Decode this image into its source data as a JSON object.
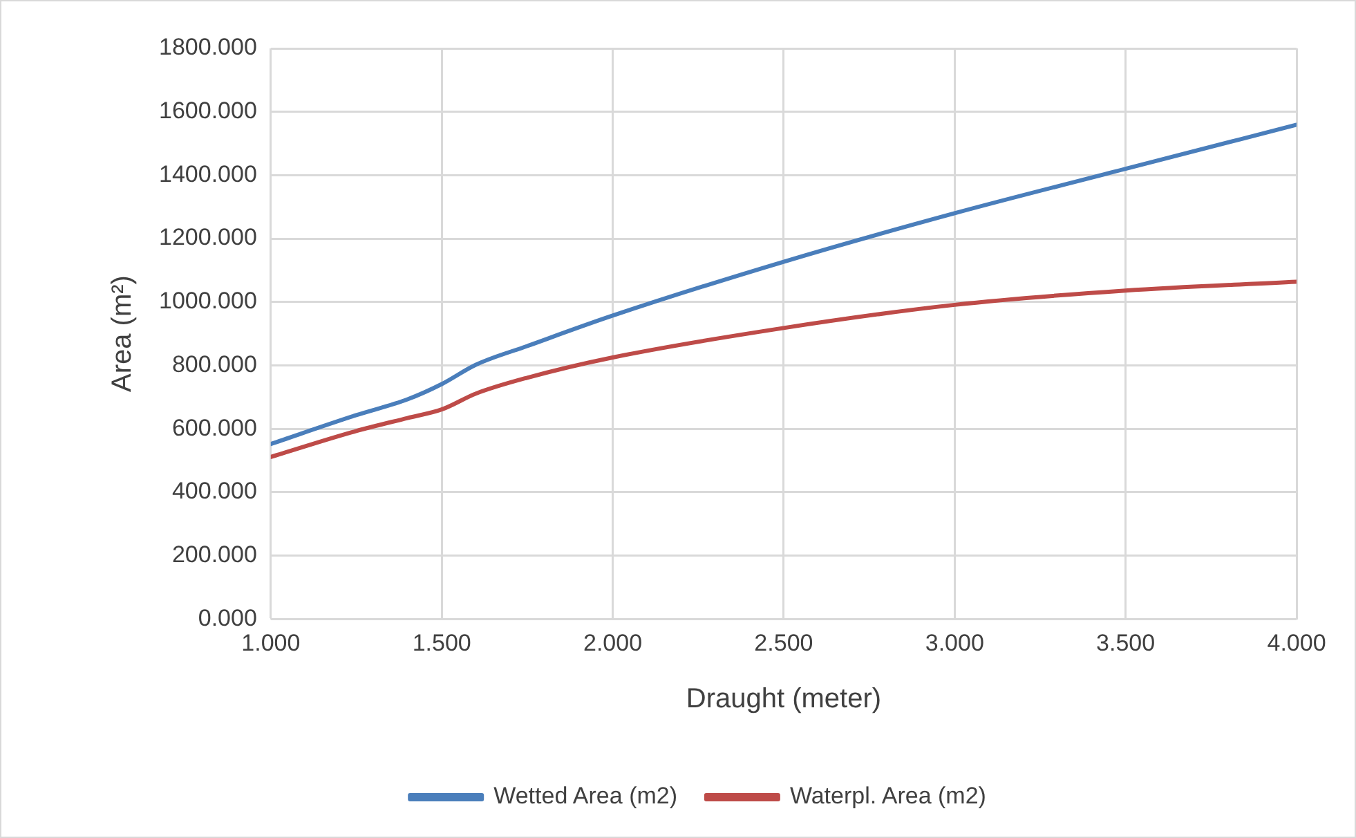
{
  "chart_data": {
    "type": "line",
    "xlabel": "Draught (meter)",
    "ylabel": "Area (m²)",
    "x": [
      1,
      1.25,
      1.4,
      1.5,
      1.6,
      1.75,
      2,
      2.5,
      3,
      3.5,
      4
    ],
    "series": [
      {
        "name": "Wetted Area (m2)",
        "color": "#4a7ebb",
        "values": [
          552,
          643,
          693,
          741,
          802,
          861,
          957,
          1127,
          1280,
          1420,
          1559
        ]
      },
      {
        "name": "Waterpl. Area (m2)",
        "color": "#be4b48",
        "values": [
          511,
          593,
          634,
          661,
          711,
          761,
          825,
          918,
          991,
          1036,
          1064
        ]
      }
    ],
    "xlim": [
      1,
      4
    ],
    "xticks": [
      {
        "value": 1,
        "label": "1.000"
      },
      {
        "value": 1.5,
        "label": "1.500"
      },
      {
        "value": 2,
        "label": "2.000"
      },
      {
        "value": 2.5,
        "label": "2.500"
      },
      {
        "value": 3,
        "label": "3.000"
      },
      {
        "value": 3.5,
        "label": "3.500"
      },
      {
        "value": 4,
        "label": "4.000"
      }
    ],
    "ylim": [
      0,
      1800
    ],
    "yticks": [
      {
        "value": 0,
        "label": "0.000"
      },
      {
        "value": 200,
        "label": "200.000"
      },
      {
        "value": 400,
        "label": "400.000"
      },
      {
        "value": 600,
        "label": "600.000"
      },
      {
        "value": 800,
        "label": "800.000"
      },
      {
        "value": 1000,
        "label": "1000.000"
      },
      {
        "value": 1200,
        "label": "1200.000"
      },
      {
        "value": 1400,
        "label": "1400.000"
      },
      {
        "value": 1600,
        "label": "1600.000"
      },
      {
        "value": 1800,
        "label": "1800.000"
      }
    ],
    "grid": true,
    "legend": "bottom",
    "marker": "none",
    "line_style": "solid"
  }
}
